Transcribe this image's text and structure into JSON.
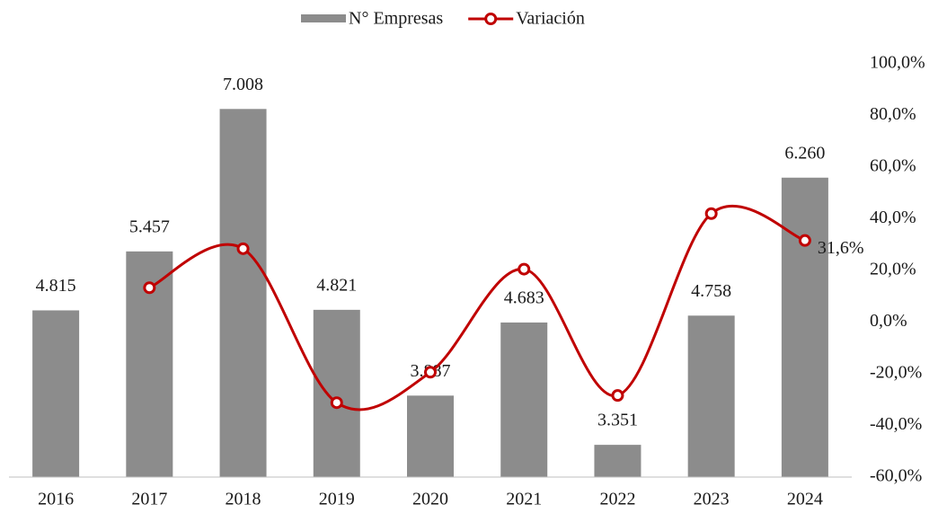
{
  "chart_data": {
    "type": "bar",
    "categories": [
      "2016",
      "2017",
      "2018",
      "2019",
      "2020",
      "2021",
      "2022",
      "2023",
      "2024"
    ],
    "series": [
      {
        "name": "N° Empresas",
        "type": "bar",
        "color": "#8c8c8c",
        "values": [
          4815,
          5457,
          7008,
          4821,
          3887,
          4683,
          3351,
          4758,
          6260
        ],
        "value_labels": [
          "4.815",
          "5.457",
          "7.008",
          "4.821",
          "3.887",
          "4.683",
          "3.351",
          "4.758",
          "6.260"
        ]
      },
      {
        "name": "Variación",
        "type": "line",
        "axis": "y2",
        "color": "#c00000",
        "smooth": true,
        "values": [
          null,
          13.3,
          28.4,
          -31.2,
          -19.4,
          20.5,
          -28.4,
          42.0,
          31.6
        ],
        "value_labels": [
          null,
          null,
          null,
          null,
          null,
          null,
          null,
          null,
          "31,6%"
        ]
      }
    ],
    "ylim": [
      3000,
      7500
    ],
    "y2lim": [
      -60,
      100
    ],
    "y2ticks": [
      {
        "value": -60,
        "label": "-60,0%"
      },
      {
        "value": -40,
        "label": "-40,0%"
      },
      {
        "value": -20,
        "label": "-20,0%"
      },
      {
        "value": 0,
        "label": "0,0%"
      },
      {
        "value": 20,
        "label": "20,0%"
      },
      {
        "value": 40,
        "label": "40,0%"
      },
      {
        "value": 60,
        "label": "60,0%"
      },
      {
        "value": 80,
        "label": "80,0%"
      },
      {
        "value": 100,
        "label": "100,0%"
      }
    ],
    "legend": "top"
  }
}
